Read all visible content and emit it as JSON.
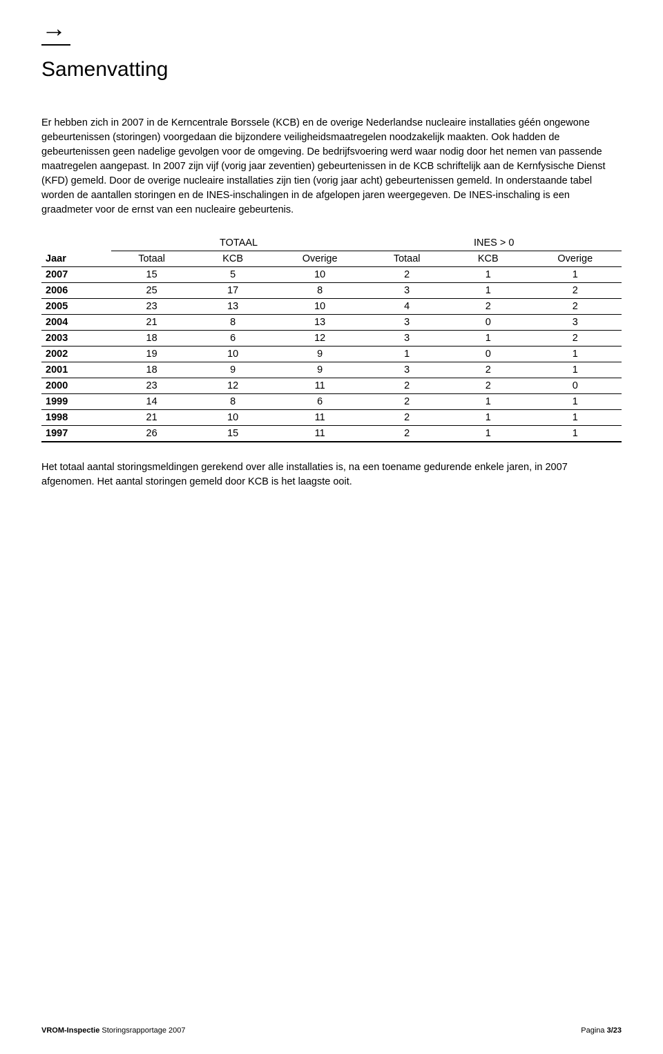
{
  "header_arrow": "→",
  "title": "Samenvatting",
  "paragraph1": "Er hebben zich in 2007 in de Kerncentrale Borssele (KCB) en de overige Nederlandse nucleaire installaties géén ongewone gebeurtenissen (storingen) voorgedaan die bijzondere veiligheidsmaatregelen noodzakelijk maakten. Ook hadden de gebeurtenissen geen nadelige gevolgen voor de omgeving. De bedrijfsvoering werd waar nodig door het nemen van passende maatregelen aangepast.",
  "paragraph1b": "In 2007 zijn vijf (vorig jaar zeventien) gebeurtenissen in de KCB schriftelijk aan de Kernfysische Dienst (KFD) gemeld. Door de overige nucleaire installaties zijn tien (vorig jaar acht) gebeurtenissen gemeld. In onderstaande tabel worden de aantallen storingen en de INES-inschalingen in de afgelopen jaren weergegeven. De INES-inschaling is een graadmeter voor de ernst van een nucleaire gebeurtenis.",
  "table": {
    "group_headers": [
      "TOTAAL",
      "INES > 0"
    ],
    "columns": [
      "Jaar",
      "Totaal",
      "KCB",
      "Overige",
      "Totaal",
      "KCB",
      "Overige"
    ],
    "rows": [
      [
        "2007",
        "15",
        "5",
        "10",
        "2",
        "1",
        "1"
      ],
      [
        "2006",
        "25",
        "17",
        "8",
        "3",
        "1",
        "2"
      ],
      [
        "2005",
        "23",
        "13",
        "10",
        "4",
        "2",
        "2"
      ],
      [
        "2004",
        "21",
        "8",
        "13",
        "3",
        "0",
        "3"
      ],
      [
        "2003",
        "18",
        "6",
        "12",
        "3",
        "1",
        "2"
      ],
      [
        "2002",
        "19",
        "10",
        "9",
        "1",
        "0",
        "1"
      ],
      [
        "2001",
        "18",
        "9",
        "9",
        "3",
        "2",
        "1"
      ],
      [
        "2000",
        "23",
        "12",
        "11",
        "2",
        "2",
        "0"
      ],
      [
        "1999",
        "14",
        "8",
        "6",
        "2",
        "1",
        "1"
      ],
      [
        "1998",
        "21",
        "10",
        "11",
        "2",
        "1",
        "1"
      ],
      [
        "1997",
        "26",
        "15",
        "11",
        "2",
        "1",
        "1"
      ]
    ],
    "column_widths": [
      "12%",
      "14%",
      "14%",
      "16%",
      "14%",
      "14%",
      "16%"
    ]
  },
  "paragraph2": "Het totaal aantal storingsmeldingen gerekend over alle installaties is, na een toename gedurende enkele jaren, in 2007 afgenomen. Het aantal storingen gemeld door KCB is het laagste ooit.",
  "footer": {
    "left_bold": "VROM-Inspectie",
    "left_text": " Storingsrapportage 2007",
    "right_label": "Pagina ",
    "right_bold": "3/23"
  }
}
